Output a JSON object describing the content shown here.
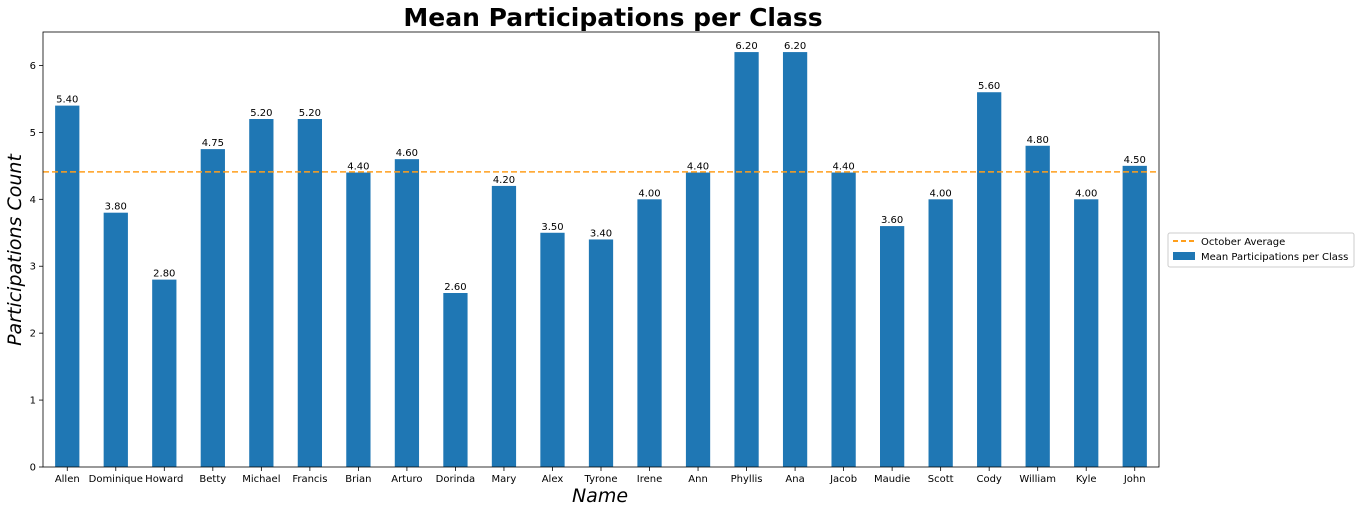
{
  "chart_data": {
    "type": "bar",
    "title": "Mean Participations per Class",
    "xlabel": "Name",
    "ylabel": "Participations Count",
    "categories": [
      "Allen",
      "Dominique",
      "Howard",
      "Betty",
      "Michael",
      "Francis",
      "Brian",
      "Arturo",
      "Dorinda",
      "Mary",
      "Alex",
      "Tyrone",
      "Irene",
      "Ann",
      "Phyllis",
      "Ana",
      "Jacob",
      "Maudie",
      "Scott",
      "Cody",
      "William",
      "Kyle",
      "John"
    ],
    "series": [
      {
        "name": "Mean Participations per Class",
        "values": [
          5.4,
          3.8,
          2.8,
          4.75,
          5.2,
          5.2,
          4.4,
          4.6,
          2.6,
          4.2,
          3.5,
          3.4,
          4.0,
          4.4,
          6.2,
          6.2,
          4.4,
          3.6,
          4.0,
          5.6,
          4.8,
          4.0,
          4.5
        ],
        "labels": [
          "5.40",
          "3.80",
          "2.80",
          "4.75",
          "5.20",
          "5.20",
          "4.40",
          "4.60",
          "2.60",
          "4.20",
          "3.50",
          "3.40",
          "4.00",
          "4.40",
          "6.20",
          "6.20",
          "4.40",
          "3.60",
          "4.00",
          "5.60",
          "4.80",
          "4.00",
          "4.50"
        ],
        "color": "#1f77b4"
      }
    ],
    "reference_line": {
      "name": "October Average",
      "value": 4.41,
      "color": "#ff9f1c",
      "style": "dashed"
    },
    "ylim": [
      0,
      6.5
    ],
    "yticks": [
      "0",
      "1",
      "2",
      "3",
      "4",
      "5",
      "6"
    ],
    "grid": false,
    "legend_position": "right"
  }
}
